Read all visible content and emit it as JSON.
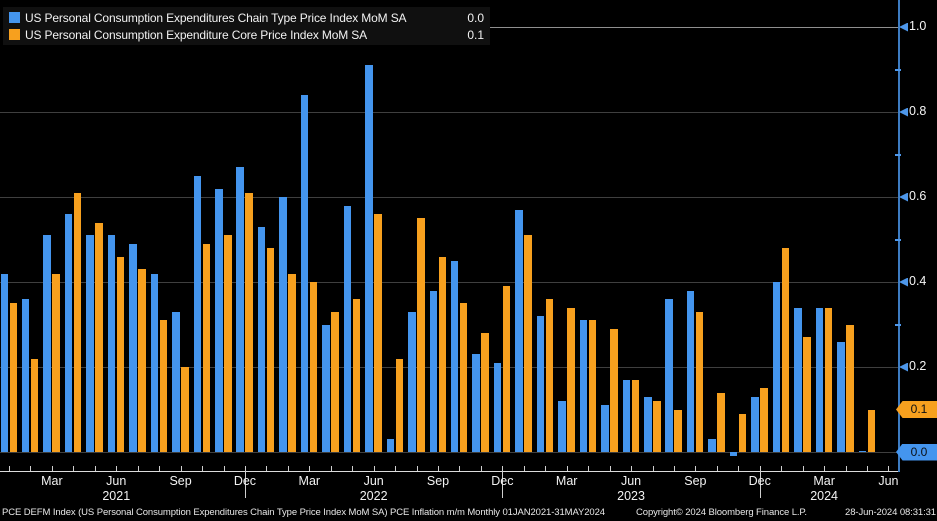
{
  "legend": {
    "items": [
      {
        "label": "US Personal Consumption Expenditures Chain Type Price Index MoM SA",
        "value": "0.0",
        "color": "#4495ee"
      },
      {
        "label": "US Personal Consumption Expenditure Core Price Index MoM SA",
        "value": "0.1",
        "color": "#f7a01e"
      }
    ]
  },
  "footer": {
    "left": "PCE DEFM Index (US Personal Consumption Expenditures Chain Type Price Index MoM SA) PCE Inflation m/m  Monthly 01JAN2021-31MAY2024",
    "copyright": "Copyright© 2024 Bloomberg Finance L.P.",
    "timestamp": "28-Jun-2024 08:31:31"
  },
  "chart_data": {
    "type": "bar",
    "x": [
      "Jan 2021",
      "Feb 2021",
      "Mar 2021",
      "Apr 2021",
      "May 2021",
      "Jun 2021",
      "Jul 2021",
      "Aug 2021",
      "Sep 2021",
      "Oct 2021",
      "Nov 2021",
      "Dec 2021",
      "Jan 2022",
      "Feb 2022",
      "Mar 2022",
      "Apr 2022",
      "May 2022",
      "Jun 2022",
      "Jul 2022",
      "Aug 2022",
      "Sep 2022",
      "Oct 2022",
      "Nov 2022",
      "Dec 2022",
      "Jan 2023",
      "Feb 2023",
      "Mar 2023",
      "Apr 2023",
      "May 2023",
      "Jun 2023",
      "Jul 2023",
      "Aug 2023",
      "Sep 2023",
      "Oct 2023",
      "Nov 2023",
      "Dec 2023",
      "Jan 2024",
      "Feb 2024",
      "Mar 2024",
      "Apr 2024",
      "May 2024"
    ],
    "series": [
      {
        "name": "US Personal Consumption Expenditures Chain Type Price Index MoM SA",
        "color": "#4495ee",
        "last_value": "0.0",
        "values": [
          0.42,
          0.36,
          0.51,
          0.56,
          0.51,
          0.51,
          0.49,
          0.42,
          0.33,
          0.65,
          0.62,
          0.67,
          0.53,
          0.6,
          0.84,
          0.3,
          0.58,
          0.91,
          0.03,
          0.33,
          0.38,
          0.45,
          0.23,
          0.21,
          0.57,
          0.32,
          0.12,
          0.31,
          0.11,
          0.17,
          0.13,
          0.36,
          0.38,
          0.03,
          -0.01,
          0.13,
          0.4,
          0.34,
          0.34,
          0.26,
          0.0
        ]
      },
      {
        "name": "US Personal Consumption Expenditure Core Price Index MoM SA",
        "color": "#f7a01e",
        "last_value": "0.1",
        "values": [
          0.35,
          0.22,
          0.42,
          0.61,
          0.54,
          0.46,
          0.43,
          0.31,
          0.2,
          0.49,
          0.51,
          0.61,
          0.48,
          0.42,
          0.4,
          0.33,
          0.36,
          0.56,
          0.22,
          0.55,
          0.46,
          0.35,
          0.28,
          0.39,
          0.51,
          0.36,
          0.34,
          0.31,
          0.29,
          0.17,
          0.12,
          0.1,
          0.33,
          0.14,
          0.09,
          0.15,
          0.48,
          0.27,
          0.34,
          0.3,
          0.1
        ]
      }
    ],
    "y_axis": {
      "range": [
        -0.05,
        1.05
      ],
      "gridlines": [
        0.2,
        0.4,
        0.6,
        0.8
      ],
      "baseline": 0.0,
      "top_line_value": 1.0,
      "major_ticks": [
        {
          "v": 1.0,
          "label": "1.0"
        },
        {
          "v": 0.8,
          "label": "0.8"
        },
        {
          "v": 0.6,
          "label": "0.6"
        },
        {
          "v": 0.4,
          "label": "0.4"
        },
        {
          "v": 0.2,
          "label": "0.2"
        }
      ],
      "minor_ticks": [
        0.9,
        0.7,
        0.5,
        0.3
      ]
    },
    "x_axis": {
      "n_ticks": 42,
      "tick_labels": [
        {
          "text": "Mar",
          "month_index": 2
        },
        {
          "text": "Jun",
          "month_index": 5
        },
        {
          "text": "Sep",
          "month_index": 8
        },
        {
          "text": "Dec",
          "month_index": 11
        },
        {
          "text": "Mar",
          "month_index": 14
        },
        {
          "text": "Jun",
          "month_index": 17
        },
        {
          "text": "Sep",
          "month_index": 20
        },
        {
          "text": "Dec",
          "month_index": 23
        },
        {
          "text": "Mar",
          "month_index": 26
        },
        {
          "text": "Jun",
          "month_index": 29
        },
        {
          "text": "Sep",
          "month_index": 32
        },
        {
          "text": "Dec",
          "month_index": 35
        },
        {
          "text": "Mar",
          "month_index": 38
        },
        {
          "text": "Jun",
          "month_index": 41
        }
      ],
      "long_tick_month_indexes": [
        11,
        23,
        35
      ],
      "year_labels": [
        {
          "text": "2021",
          "month_index": 5
        },
        {
          "text": "2022",
          "month_index": 17
        },
        {
          "text": "2023",
          "month_index": 29
        },
        {
          "text": "2024",
          "month_index": 38
        }
      ]
    },
    "last_value_badges": [
      {
        "label": "0.1",
        "v": 0.1,
        "color": "#f7a01e",
        "series": "core"
      },
      {
        "label": "0.0",
        "v": 0.0,
        "color": "#4495ee",
        "series": "headline"
      }
    ],
    "legend_position": "top-left",
    "grid": "on"
  }
}
